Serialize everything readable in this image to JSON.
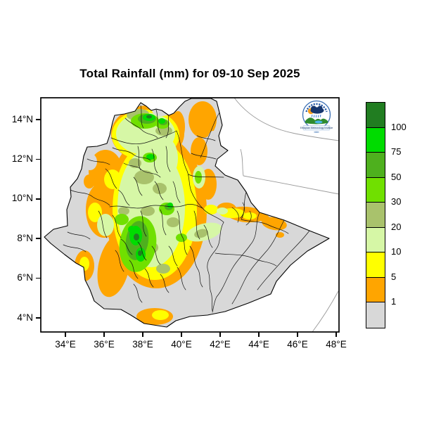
{
  "title": "Total Rainfall (mm) for 09-10 Sep 2025",
  "map": {
    "x_ticks": [
      "34°E",
      "36°E",
      "38°E",
      "40°E",
      "42°E",
      "44°E",
      "46°E",
      "48°E"
    ],
    "y_ticks": [
      "14°N",
      "12°N",
      "10°N",
      "8°N",
      "6°N",
      "4°N"
    ]
  },
  "legend": {
    "labels": [
      "100",
      "75",
      "50",
      "30",
      "20",
      "10",
      "5",
      "1"
    ],
    "band_order": [
      "dark_green",
      "bright_green",
      "green",
      "chartreuse",
      "sage",
      "pale_green",
      "yellow",
      "orange",
      "gray"
    ],
    "palette": {
      "dark_green": "#217d21",
      "bright_green": "#00dc00",
      "green": "#4eb01e",
      "chartreuse": "#70e000",
      "sage": "#a9c26c",
      "pale_green": "#d6f7a6",
      "yellow": "#ffff00",
      "orange": "#ffa500",
      "gray": "#d8d8d8"
    },
    "line_color": "#000000"
  },
  "logo": {
    "banner_text": "Ethiopian Meteorology Institute"
  },
  "chart_data": {
    "type": "filled-contour-map",
    "title": "Total Rainfall (mm) for 09-10 Sep 2025",
    "variable": "Total rainfall (mm)",
    "region": "Ethiopia with administrative zone boundaries",
    "levels_mm": [
      1,
      5,
      10,
      20,
      30,
      50,
      75,
      100
    ],
    "lon_axis_deg_e": [
      34,
      36,
      38,
      40,
      42,
      44,
      46,
      48
    ],
    "lat_axis_deg_n": [
      4,
      6,
      8,
      10,
      12,
      14
    ],
    "legend_position": "right",
    "pattern_summary": "Heaviest rainfall (75-100+ mm, bright/dark green) over the southwestern highlands (~36.5-38.5E, 6-8N) and northern Tigray (~37.5-39.5E, 13.5-14.5N); light-moderate rain (yellow/pale green 5-30 mm) across the central and western highlands with orange (1-5 mm) fringes; eastern Somali and Afar lowlands mostly dry (<1 mm, gray) with scattered orange patches along ~9N"
  }
}
